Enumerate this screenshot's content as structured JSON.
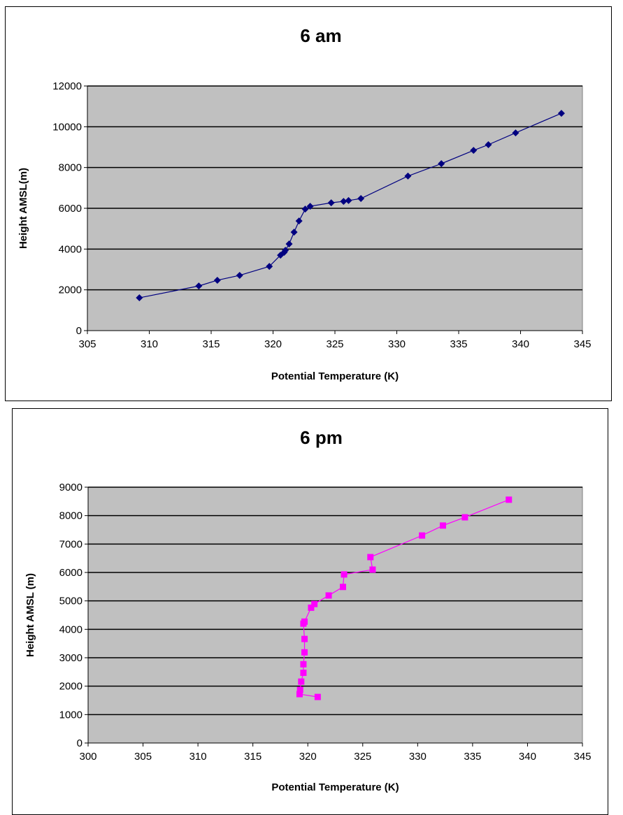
{
  "chart_data": [
    {
      "type": "line",
      "title": "6 am",
      "xlabel": "Potential Temperature (K)",
      "ylabel": "Height AMSL(m)",
      "xlim": [
        305,
        345
      ],
      "ylim": [
        0,
        12000
      ],
      "xticks": [
        305,
        310,
        315,
        320,
        325,
        330,
        335,
        340,
        345
      ],
      "yticks": [
        0,
        2000,
        4000,
        6000,
        8000,
        10000,
        12000
      ],
      "grid": "horizontal",
      "marker": "diamond",
      "color": "#000080",
      "x": [
        309.2,
        314.0,
        315.5,
        317.3,
        319.7,
        320.6,
        320.9,
        321.0,
        321.3,
        321.7,
        322.1,
        322.6,
        323.0,
        324.7,
        325.7,
        326.1,
        327.1,
        330.9,
        333.6,
        336.2,
        337.4,
        339.6,
        343.3
      ],
      "y": [
        1610,
        2190,
        2470,
        2710,
        3150,
        3700,
        3840,
        3940,
        4250,
        4830,
        5380,
        5960,
        6100,
        6270,
        6340,
        6380,
        6480,
        7580,
        8190,
        8840,
        9120,
        9700,
        10660
      ]
    },
    {
      "type": "line",
      "title": "6 pm",
      "xlabel": "Potential Temperature (K)",
      "ylabel": "Height AMSL (m)",
      "xlim": [
        300,
        345
      ],
      "ylim": [
        0,
        9000
      ],
      "xticks": [
        300,
        305,
        310,
        315,
        320,
        325,
        330,
        335,
        340,
        345
      ],
      "yticks": [
        0,
        1000,
        2000,
        3000,
        4000,
        5000,
        6000,
        7000,
        8000,
        9000
      ],
      "grid": "horizontal",
      "marker": "square",
      "color": "#FF00FF",
      "x": [
        320.9,
        319.25,
        319.3,
        319.4,
        319.6,
        319.6,
        319.7,
        319.7,
        319.6,
        319.7,
        320.3,
        320.6,
        321.9,
        323.2,
        323.3,
        325.9,
        325.7,
        330.4,
        332.3,
        334.3,
        338.3
      ],
      "y": [
        1620,
        1720,
        1870,
        2160,
        2470,
        2770,
        3190,
        3660,
        4200,
        4270,
        4760,
        4890,
        5190,
        5490,
        5930,
        6100,
        6540,
        7300,
        7650,
        7940,
        8560
      ]
    }
  ]
}
